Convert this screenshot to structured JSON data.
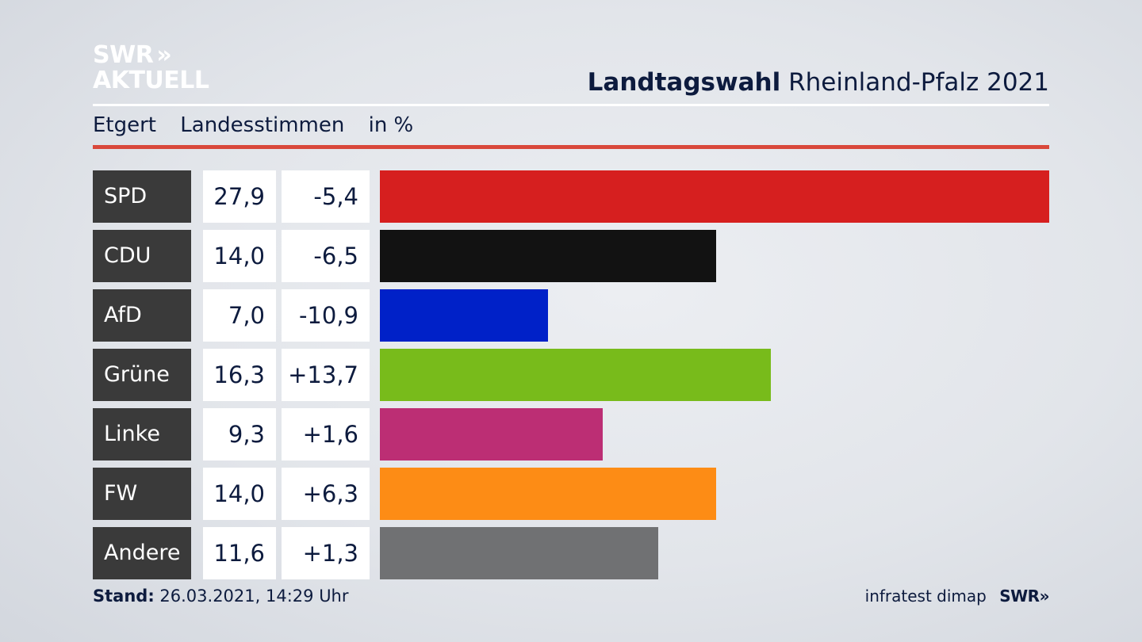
{
  "header": {
    "logo_line1": "SWR",
    "logo_arrows": "»",
    "logo_line2": "AKTUELL",
    "title_bold": "Landtagswahl",
    "title_rest": "Rheinland-Pfalz 2021",
    "location": "Etgert",
    "measure": "Landesstimmen",
    "unit": "in %"
  },
  "colors": {
    "accent_rule": "#d9483b",
    "label_bg": "#3a3a3a"
  },
  "chart_data": {
    "type": "bar",
    "orientation": "horizontal",
    "title": "Landtagswahl Rheinland-Pfalz 2021",
    "subtitle": "Etgert Landesstimmen in %",
    "categories": [
      "SPD",
      "CDU",
      "AfD",
      "Grüne",
      "Linke",
      "FW",
      "Andere"
    ],
    "values": [
      27.9,
      14.0,
      7.0,
      16.3,
      9.3,
      14.0,
      11.6
    ],
    "value_labels": [
      "27,9",
      "14,0",
      "7,0",
      "16,3",
      "9,3",
      "14,0",
      "11,6"
    ],
    "changes": [
      -5.4,
      -6.5,
      -10.9,
      13.7,
      1.6,
      6.3,
      1.3
    ],
    "change_labels": [
      "-5,4",
      "-6,5",
      "-10,9",
      "+13,7",
      "+1,6",
      "+6,3",
      "+1,3"
    ],
    "bar_colors": [
      "#d61f1f",
      "#121212",
      "#0021c8",
      "#78bb1b",
      "#bc2e74",
      "#fd8c15",
      "#707173"
    ],
    "xlim": [
      0,
      27.9
    ],
    "grid": false
  },
  "footer": {
    "stand_label": "Stand:",
    "stand_value": "26.03.2021, 14:29 Uhr",
    "source": "infratest dimap",
    "source_logo": "SWR»"
  }
}
